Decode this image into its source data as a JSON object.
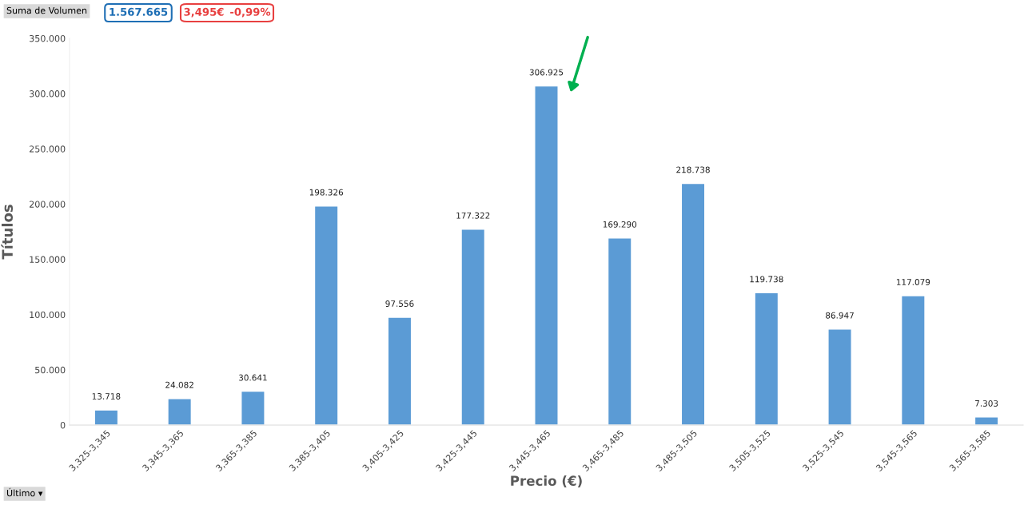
{
  "chart_data": {
    "type": "bar",
    "xlabel": "Precio (€)",
    "ylabel": "Títulos",
    "categories": [
      "3,325-3,345",
      "3,345-3,365",
      "3,365-3,385",
      "3,385-3,405",
      "3,405-3,425",
      "3,425-3,445",
      "3,445-3,465",
      "3,465-3,485",
      "3,485-3,505",
      "3,505-3,525",
      "3,525-3,545",
      "3,545-3,565",
      "3,565-3,585"
    ],
    "values": [
      13718,
      24082,
      30641,
      198326,
      97556,
      177322,
      306925,
      169290,
      218738,
      119738,
      86947,
      117079,
      7303
    ],
    "value_labels": [
      "13.718",
      "24.082",
      "30.641",
      "198.326",
      "97.556",
      "177.322",
      "306.925",
      "169.290",
      "218.738",
      "119.738",
      "86.947",
      "117.079",
      "7.303"
    ],
    "color": "#5b9bd5",
    "ylim": [
      0,
      350000
    ],
    "yticks": [
      0,
      {
        "value": 50000,
        "label": "50.000"
      },
      {
        "value": 100000,
        "label": "100.000"
      },
      {
        "value": 150000,
        "label": "150.000"
      },
      {
        "value": 200000,
        "label": "200.000"
      },
      {
        "value": 250000,
        "label": "250.000"
      },
      {
        "value": 300000,
        "label": "300.000"
      },
      {
        "value": 350000,
        "label": "350.000"
      }
    ],
    "grid": false,
    "annotations": [
      "Suma de Volumen",
      "1.567.665",
      "3,495€",
      "-0,99%",
      "Último ▾"
    ]
  }
}
